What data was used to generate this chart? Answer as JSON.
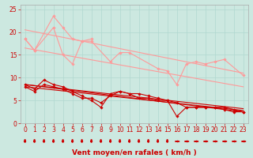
{
  "background_color": "#cce8e0",
  "grid_color": "#b0d8d0",
  "xlabel": "Vent moyen/en rafales ( km/h )",
  "xlabel_color": "#cc0000",
  "xlabel_fontsize": 6.5,
  "tick_color": "#cc0000",
  "tick_fontsize": 5.5,
  "ylim": [
    0,
    26
  ],
  "xlim": [
    -0.5,
    23.5
  ],
  "yticks": [
    0,
    5,
    10,
    15,
    20,
    25
  ],
  "xticks": [
    0,
    1,
    2,
    3,
    4,
    5,
    6,
    7,
    8,
    9,
    10,
    11,
    12,
    13,
    14,
    15,
    16,
    17,
    18,
    19,
    20,
    21,
    22,
    23
  ],
  "line_upper_trend1": {
    "x": [
      0,
      23
    ],
    "y": [
      20.5,
      11.0
    ],
    "color": "#ff9999",
    "lw": 0.8
  },
  "line_upper_trend2": {
    "x": [
      0,
      23
    ],
    "y": [
      16.5,
      8.0
    ],
    "color": "#ff9999",
    "lw": 0.8
  },
  "line_pink1": {
    "x": [
      0,
      1,
      3,
      4,
      5,
      6,
      7
    ],
    "y": [
      18.5,
      16.0,
      23.5,
      21.0,
      18.5,
      18.0,
      18.5
    ],
    "color": "#ff9999",
    "lw": 0.8,
    "marker": "D",
    "ms": 1.8
  },
  "line_pink2": {
    "x": [
      0,
      1,
      3,
      4,
      5,
      6,
      7,
      9,
      10,
      11,
      14,
      15,
      16,
      17,
      18,
      19,
      20,
      21,
      23
    ],
    "y": [
      18.5,
      16.0,
      21.0,
      15.0,
      13.0,
      18.0,
      18.0,
      13.5,
      15.5,
      15.5,
      12.0,
      11.5,
      8.5,
      13.0,
      13.5,
      13.0,
      13.5,
      14.0,
      10.5
    ],
    "color": "#ff9999",
    "lw": 0.8,
    "marker": "D",
    "ms": 1.8
  },
  "line_red_trend1": {
    "x": [
      0,
      23
    ],
    "y": [
      8.5,
      2.5
    ],
    "color": "#cc0000",
    "lw": 0.8
  },
  "line_red_trend2": {
    "x": [
      0,
      23
    ],
    "y": [
      8.0,
      2.8
    ],
    "color": "#cc0000",
    "lw": 0.8
  },
  "line_red_trend3": {
    "x": [
      0,
      23
    ],
    "y": [
      8.5,
      3.2
    ],
    "color": "#cc0000",
    "lw": 0.8
  },
  "line_red1": {
    "x": [
      0,
      1,
      2,
      3,
      4,
      5,
      6,
      7,
      8,
      9,
      10,
      11,
      12,
      13,
      14,
      15,
      16,
      17,
      18,
      19,
      20,
      21,
      22,
      23
    ],
    "y": [
      8.5,
      7.5,
      9.5,
      8.5,
      8.0,
      7.0,
      6.0,
      5.0,
      3.5,
      6.5,
      7.0,
      6.5,
      6.5,
      6.0,
      5.5,
      5.0,
      1.5,
      3.5,
      3.5,
      3.5,
      3.5,
      3.5,
      3.0,
      2.5
    ],
    "color": "#cc0000",
    "lw": 0.8,
    "marker": "D",
    "ms": 1.8
  },
  "line_red2": {
    "x": [
      0,
      1,
      2,
      3,
      4,
      5,
      6,
      7,
      8,
      9,
      10,
      11,
      12,
      13,
      14,
      15,
      16,
      17,
      18,
      19,
      20,
      21,
      22,
      23
    ],
    "y": [
      8.0,
      7.0,
      8.5,
      8.0,
      7.5,
      6.5,
      5.5,
      5.5,
      4.5,
      6.0,
      7.0,
      6.5,
      5.5,
      5.5,
      5.0,
      5.0,
      4.5,
      3.5,
      3.5,
      3.5,
      3.5,
      3.0,
      2.5,
      2.5
    ],
    "color": "#cc0000",
    "lw": 0.8,
    "marker": "D",
    "ms": 1.8
  },
  "arrows_down_x": [
    0,
    1,
    2,
    3,
    4,
    5,
    6,
    7,
    8,
    9,
    10,
    11,
    12,
    13,
    14,
    15
  ],
  "arrows_right_x": [
    16,
    17,
    18,
    19,
    20,
    21,
    22,
    23
  ],
  "arrow_color": "#cc0000"
}
